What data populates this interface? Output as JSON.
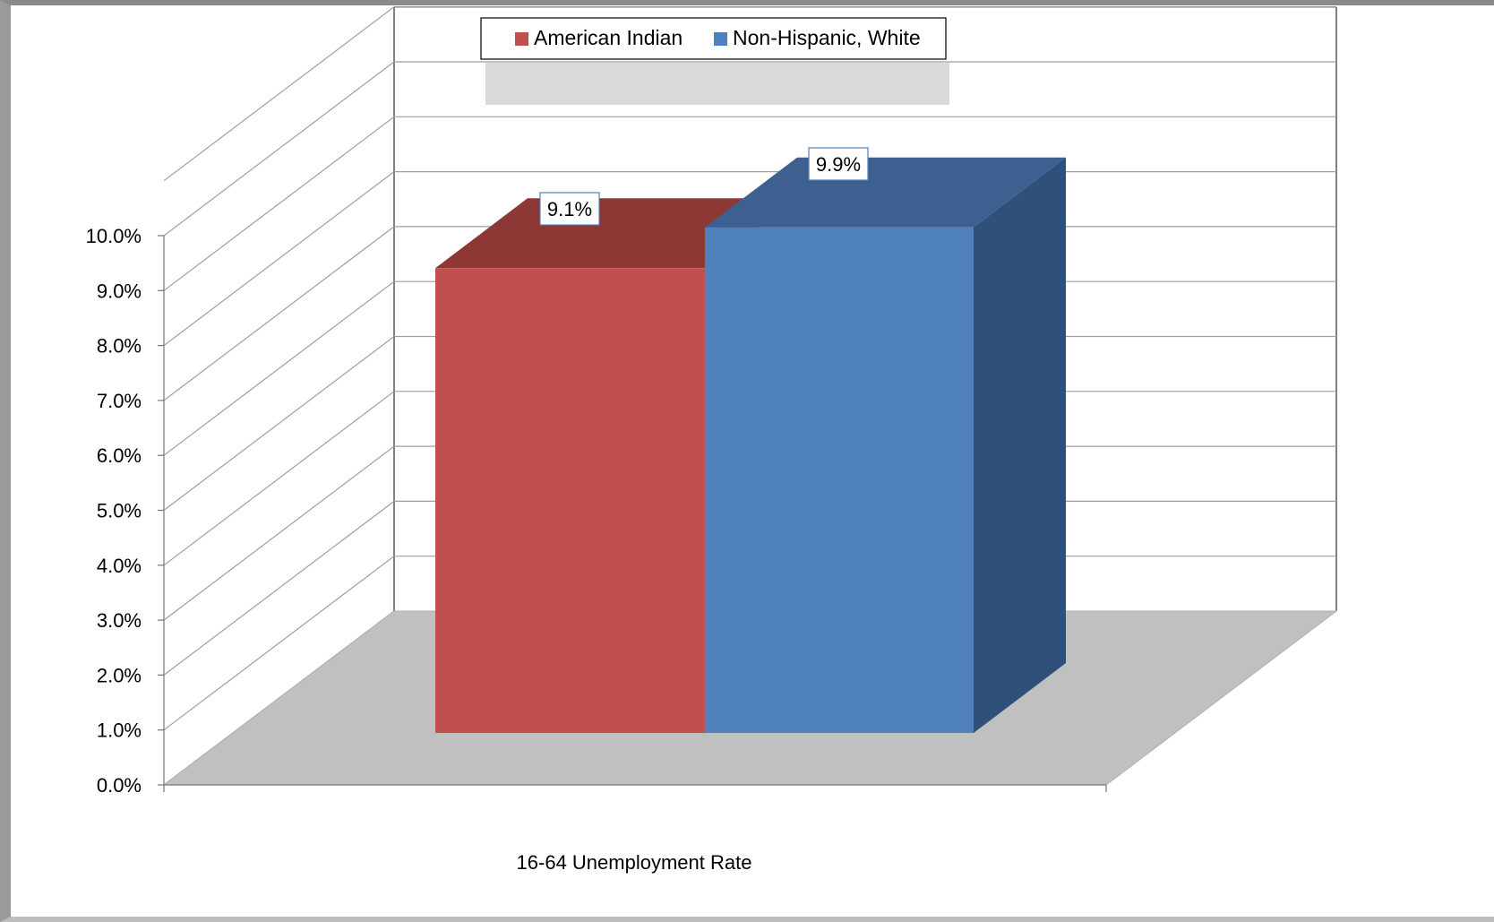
{
  "chart_data": {
    "type": "bar",
    "categories": [
      "16-64 Unemployment Rate"
    ],
    "series": [
      {
        "name": "American Indian",
        "values": [
          9.1
        ],
        "color": "#C0504D",
        "top_color": "#8E3836"
      },
      {
        "name": "Non-Hispanic, White",
        "values": [
          9.9
        ],
        "color": "#4F81BD",
        "top_color": "#3D6090",
        "side_color": "#2F5079"
      }
    ],
    "y_ticks": [
      "0.0%",
      "1.0%",
      "2.0%",
      "3.0%",
      "4.0%",
      "5.0%",
      "6.0%",
      "7.0%",
      "8.0%",
      "9.0%",
      "10.0%"
    ],
    "data_labels": [
      "9.1%",
      "9.9%"
    ],
    "ylim": [
      0,
      10
    ],
    "legend_position": "top",
    "grid": true,
    "style": "3d-column",
    "floor_color": "#C0C0C0"
  }
}
